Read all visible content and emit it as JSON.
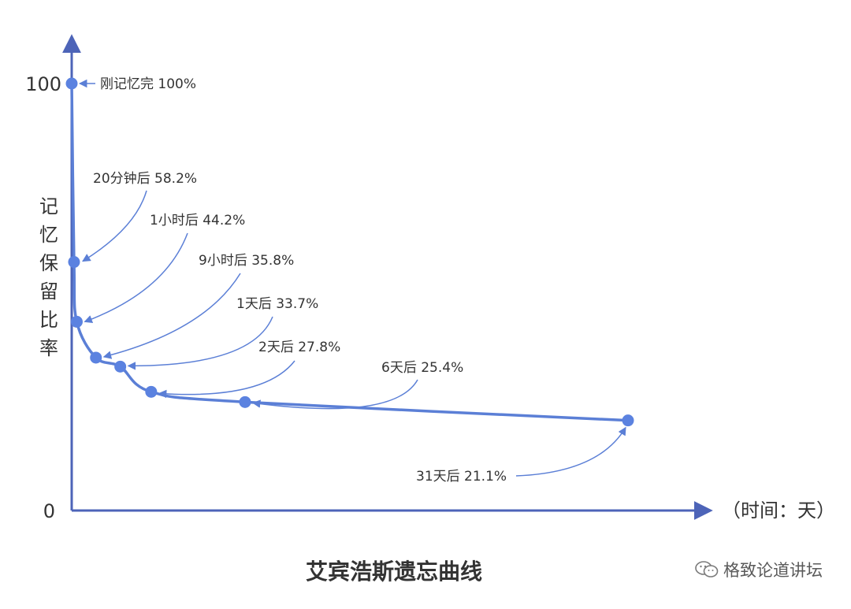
{
  "chart_data": {
    "type": "line",
    "title": "艾宾浩斯遗忘曲线",
    "ylabel": "记忆保留比率",
    "xlabel": "（时间：天）",
    "ylim": [
      0,
      100
    ],
    "xlim": [
      0,
      31
    ],
    "y_ticks": [
      "0",
      "100"
    ],
    "grid": false,
    "series": [
      {
        "x": [
          0,
          0.0139,
          0.0417,
          0.375,
          1,
          2,
          6,
          31
        ],
        "y": [
          100,
          58.2,
          44.2,
          35.8,
          33.7,
          27.8,
          25.4,
          21.1
        ]
      }
    ],
    "annotations": [
      "刚记忆完 100%",
      "20分钟后 58.2%",
      "1小时后 44.2%",
      "9小时后 35.8%",
      "1天后 33.7%",
      "2天后 27.8%",
      "6天后 25.4%",
      "31天后 21.1%"
    ]
  },
  "colors": {
    "line": "#5b7fd6",
    "axis": "#4d64b8",
    "point": "#5b82e0"
  },
  "watermark": "格致论道讲坛"
}
